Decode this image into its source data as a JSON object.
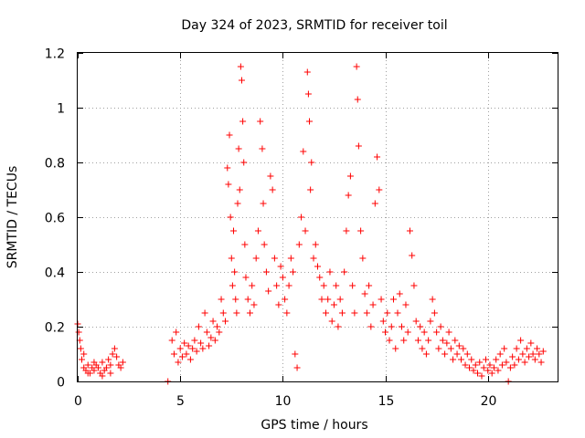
{
  "chart_data": {
    "type": "scatter",
    "title": "Day 324 of 2023, SRMTID for receiver toil",
    "xlabel": "GPS time / hours",
    "ylabel": "SRMTID / TECUs",
    "xlim": [
      0,
      23.4
    ],
    "ylim": [
      0,
      1.2
    ],
    "grid": true,
    "xticks": [
      0,
      5,
      10,
      15,
      20
    ],
    "xtick_labels": [
      "0",
      "5",
      "10",
      "15",
      "20"
    ],
    "yticks": [
      0,
      0.2,
      0.4,
      0.6,
      0.8,
      1.0,
      1.2
    ],
    "ytick_labels": [
      "0",
      "0.2",
      "0.4",
      "0.6",
      "0.8",
      "1",
      "1.2"
    ],
    "marker": "+",
    "color": "#ff0000",
    "series": [
      {
        "name": "SRMTID",
        "points": [
          [
            0.0,
            0.21
          ],
          [
            0.05,
            0.18
          ],
          [
            0.1,
            0.15
          ],
          [
            0.15,
            0.12
          ],
          [
            0.2,
            0.08
          ],
          [
            0.3,
            0.05
          ],
          [
            0.4,
            0.04
          ],
          [
            0.5,
            0.06
          ],
          [
            0.6,
            0.03
          ],
          [
            0.7,
            0.05
          ],
          [
            0.8,
            0.04
          ],
          [
            0.9,
            0.06
          ],
          [
            1.0,
            0.05
          ],
          [
            1.1,
            0.03
          ],
          [
            1.2,
            0.07
          ],
          [
            1.3,
            0.04
          ],
          [
            1.4,
            0.05
          ],
          [
            1.5,
            0.08
          ],
          [
            1.6,
            0.06
          ],
          [
            1.7,
            0.1
          ],
          [
            1.8,
            0.12
          ],
          [
            1.9,
            0.09
          ],
          [
            2.0,
            0.06
          ],
          [
            2.1,
            0.05
          ],
          [
            2.2,
            0.07
          ],
          [
            0.3,
            0.1
          ],
          [
            0.5,
            0.03
          ],
          [
            0.8,
            0.07
          ],
          [
            1.2,
            0.02
          ],
          [
            1.6,
            0.03
          ],
          [
            4.4,
            0.0
          ],
          [
            4.6,
            0.15
          ],
          [
            4.7,
            0.1
          ],
          [
            4.8,
            0.18
          ],
          [
            4.9,
            0.07
          ],
          [
            5.0,
            0.12
          ],
          [
            5.1,
            0.09
          ],
          [
            5.2,
            0.14
          ],
          [
            5.3,
            0.1
          ],
          [
            5.4,
            0.13
          ],
          [
            5.5,
            0.08
          ],
          [
            5.6,
            0.12
          ],
          [
            5.7,
            0.15
          ],
          [
            5.8,
            0.11
          ],
          [
            5.9,
            0.2
          ],
          [
            6.0,
            0.14
          ],
          [
            6.1,
            0.12
          ],
          [
            6.2,
            0.25
          ],
          [
            6.3,
            0.18
          ],
          [
            6.4,
            0.13
          ],
          [
            6.5,
            0.16
          ],
          [
            6.6,
            0.22
          ],
          [
            6.7,
            0.15
          ],
          [
            6.8,
            0.2
          ],
          [
            6.9,
            0.18
          ],
          [
            7.0,
            0.3
          ],
          [
            7.1,
            0.25
          ],
          [
            7.2,
            0.22
          ],
          [
            7.3,
            0.78
          ],
          [
            7.35,
            0.72
          ],
          [
            7.4,
            0.9
          ],
          [
            7.45,
            0.6
          ],
          [
            7.5,
            0.45
          ],
          [
            7.55,
            0.35
          ],
          [
            7.6,
            0.55
          ],
          [
            7.65,
            0.4
          ],
          [
            7.7,
            0.3
          ],
          [
            7.75,
            0.25
          ],
          [
            7.8,
            0.65
          ],
          [
            7.85,
            0.85
          ],
          [
            7.9,
            0.7
          ],
          [
            7.95,
            1.15
          ],
          [
            8.0,
            1.1
          ],
          [
            8.05,
            0.95
          ],
          [
            8.1,
            0.8
          ],
          [
            8.15,
            0.5
          ],
          [
            8.2,
            0.38
          ],
          [
            8.3,
            0.3
          ],
          [
            8.4,
            0.25
          ],
          [
            8.5,
            0.35
          ],
          [
            8.6,
            0.28
          ],
          [
            8.7,
            0.45
          ],
          [
            8.8,
            0.55
          ],
          [
            8.9,
            0.95
          ],
          [
            9.0,
            0.85
          ],
          [
            9.05,
            0.65
          ],
          [
            9.1,
            0.5
          ],
          [
            9.2,
            0.4
          ],
          [
            9.3,
            0.33
          ],
          [
            9.4,
            0.75
          ],
          [
            9.5,
            0.7
          ],
          [
            9.6,
            0.45
          ],
          [
            9.7,
            0.35
          ],
          [
            9.8,
            0.28
          ],
          [
            9.9,
            0.42
          ],
          [
            10.0,
            0.38
          ],
          [
            10.1,
            0.3
          ],
          [
            10.2,
            0.25
          ],
          [
            10.3,
            0.35
          ],
          [
            10.4,
            0.45
          ],
          [
            10.5,
            0.4
          ],
          [
            10.6,
            0.1
          ],
          [
            10.7,
            0.05
          ],
          [
            10.8,
            0.5
          ],
          [
            10.9,
            0.6
          ],
          [
            11.0,
            0.84
          ],
          [
            11.1,
            0.55
          ],
          [
            11.2,
            1.13
          ],
          [
            11.25,
            1.05
          ],
          [
            11.3,
            0.95
          ],
          [
            11.35,
            0.7
          ],
          [
            11.4,
            0.8
          ],
          [
            11.5,
            0.45
          ],
          [
            11.6,
            0.5
          ],
          [
            11.7,
            0.42
          ],
          [
            11.8,
            0.38
          ],
          [
            11.9,
            0.3
          ],
          [
            12.0,
            0.35
          ],
          [
            12.1,
            0.25
          ],
          [
            12.2,
            0.3
          ],
          [
            12.3,
            0.4
          ],
          [
            12.4,
            0.22
          ],
          [
            12.5,
            0.28
          ],
          [
            12.6,
            0.35
          ],
          [
            12.7,
            0.2
          ],
          [
            12.8,
            0.3
          ],
          [
            12.9,
            0.25
          ],
          [
            13.0,
            0.4
          ],
          [
            13.1,
            0.55
          ],
          [
            13.2,
            0.68
          ],
          [
            13.3,
            0.75
          ],
          [
            13.4,
            0.35
          ],
          [
            13.5,
            0.25
          ],
          [
            13.6,
            1.15
          ],
          [
            13.65,
            1.03
          ],
          [
            13.7,
            0.86
          ],
          [
            13.8,
            0.55
          ],
          [
            13.9,
            0.45
          ],
          [
            14.0,
            0.32
          ],
          [
            14.1,
            0.25
          ],
          [
            14.2,
            0.35
          ],
          [
            14.3,
            0.2
          ],
          [
            14.4,
            0.28
          ],
          [
            14.5,
            0.65
          ],
          [
            14.6,
            0.82
          ],
          [
            14.7,
            0.7
          ],
          [
            14.8,
            0.3
          ],
          [
            14.9,
            0.22
          ],
          [
            15.0,
            0.18
          ],
          [
            15.1,
            0.25
          ],
          [
            15.2,
            0.15
          ],
          [
            15.3,
            0.2
          ],
          [
            15.4,
            0.3
          ],
          [
            15.5,
            0.12
          ],
          [
            15.6,
            0.25
          ],
          [
            15.7,
            0.32
          ],
          [
            15.8,
            0.2
          ],
          [
            15.9,
            0.15
          ],
          [
            16.0,
            0.28
          ],
          [
            16.1,
            0.18
          ],
          [
            16.2,
            0.55
          ],
          [
            16.3,
            0.46
          ],
          [
            16.4,
            0.35
          ],
          [
            16.5,
            0.22
          ],
          [
            16.6,
            0.15
          ],
          [
            16.7,
            0.2
          ],
          [
            16.8,
            0.12
          ],
          [
            16.9,
            0.18
          ],
          [
            17.0,
            0.1
          ],
          [
            17.1,
            0.15
          ],
          [
            17.2,
            0.22
          ],
          [
            17.3,
            0.3
          ],
          [
            17.4,
            0.25
          ],
          [
            17.5,
            0.18
          ],
          [
            17.6,
            0.12
          ],
          [
            17.7,
            0.2
          ],
          [
            17.8,
            0.15
          ],
          [
            17.9,
            0.1
          ],
          [
            18.0,
            0.14
          ],
          [
            18.1,
            0.18
          ],
          [
            18.2,
            0.12
          ],
          [
            18.3,
            0.08
          ],
          [
            18.4,
            0.15
          ],
          [
            18.5,
            0.1
          ],
          [
            18.6,
            0.13
          ],
          [
            18.7,
            0.08
          ],
          [
            18.8,
            0.12
          ],
          [
            18.9,
            0.06
          ],
          [
            19.0,
            0.1
          ],
          [
            19.1,
            0.05
          ],
          [
            19.2,
            0.08
          ],
          [
            19.3,
            0.04
          ],
          [
            19.4,
            0.06
          ],
          [
            19.5,
            0.03
          ],
          [
            19.6,
            0.07
          ],
          [
            19.7,
            0.02
          ],
          [
            19.8,
            0.05
          ],
          [
            19.9,
            0.08
          ],
          [
            20.0,
            0.04
          ],
          [
            20.1,
            0.06
          ],
          [
            20.2,
            0.03
          ],
          [
            20.3,
            0.05
          ],
          [
            20.4,
            0.08
          ],
          [
            20.5,
            0.04
          ],
          [
            20.6,
            0.1
          ],
          [
            20.7,
            0.06
          ],
          [
            20.8,
            0.12
          ],
          [
            20.9,
            0.07
          ],
          [
            21.0,
            0.0
          ],
          [
            21.1,
            0.05
          ],
          [
            21.2,
            0.09
          ],
          [
            21.3,
            0.06
          ],
          [
            21.4,
            0.12
          ],
          [
            21.5,
            0.08
          ],
          [
            21.6,
            0.15
          ],
          [
            21.7,
            0.1
          ],
          [
            21.8,
            0.07
          ],
          [
            21.9,
            0.12
          ],
          [
            22.0,
            0.09
          ],
          [
            22.1,
            0.14
          ],
          [
            22.2,
            0.1
          ],
          [
            22.3,
            0.08
          ],
          [
            22.4,
            0.12
          ],
          [
            22.5,
            0.1
          ],
          [
            22.6,
            0.07
          ],
          [
            22.7,
            0.11
          ]
        ]
      }
    ]
  }
}
